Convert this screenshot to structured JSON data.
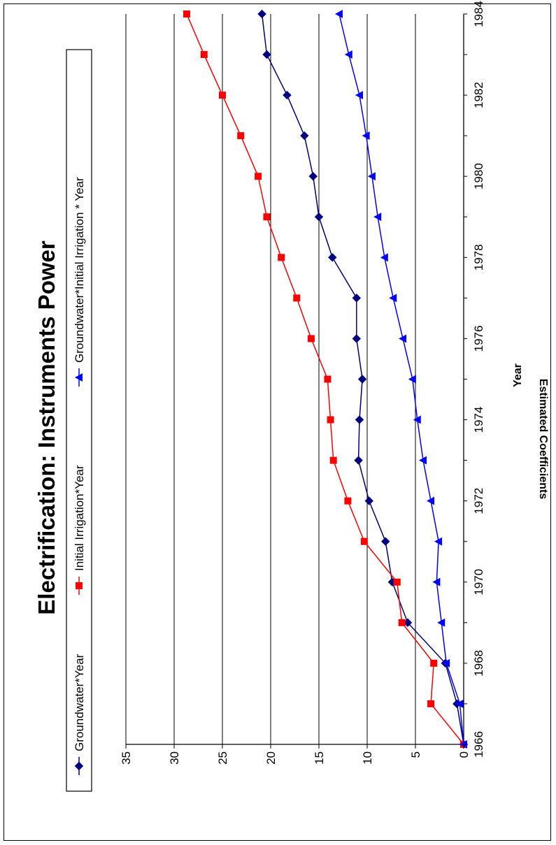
{
  "chart_data": {
    "type": "line",
    "orientation": "rotated-90-ccw",
    "title": "Electrification: Instruments Power",
    "xlabel": "Year",
    "ylabel": "Estimated Coefficients",
    "x": [
      1966,
      1967,
      1968,
      1969,
      1970,
      1971,
      1972,
      1973,
      1974,
      1975,
      1976,
      1977,
      1978,
      1979,
      1980,
      1981,
      1982,
      1983,
      1984
    ],
    "xticks": [
      1966,
      1968,
      1970,
      1972,
      1974,
      1976,
      1978,
      1980,
      1982,
      1984
    ],
    "yticks": [
      0,
      5,
      10,
      15,
      20,
      25,
      30,
      35
    ],
    "xlim": [
      1966,
      1984
    ],
    "ylim": [
      0,
      35
    ],
    "grid": "horizontal",
    "legend_position": "top",
    "series": [
      {
        "name": "Groundwater*Year",
        "color": "#000080",
        "marker": "diamond",
        "values": [
          0,
          0.7,
          1.9,
          5.8,
          7.4,
          8.1,
          9.8,
          10.9,
          10.8,
          10.5,
          11.1,
          11.1,
          13.6,
          15.0,
          15.6,
          16.5,
          18.3,
          20.4,
          20.9
        ]
      },
      {
        "name": "Initial Irrigation*Year",
        "color": "#ff0000",
        "marker": "square",
        "values": [
          0,
          3.4,
          3.1,
          6.4,
          6.9,
          10.3,
          12.0,
          13.5,
          13.8,
          14.1,
          15.8,
          17.3,
          18.9,
          20.4,
          21.3,
          23.1,
          25.0,
          26.9,
          28.7
        ]
      },
      {
        "name": "Groundwater*Initial Irrigation * Year",
        "color": "#0000ff",
        "marker": "triangle",
        "values": [
          0,
          0.4,
          1.8,
          2.3,
          2.8,
          2.6,
          3.4,
          4.2,
          4.8,
          5.3,
          6.3,
          7.3,
          8.2,
          8.9,
          9.5,
          10.1,
          10.8,
          11.9,
          12.9
        ]
      }
    ]
  }
}
